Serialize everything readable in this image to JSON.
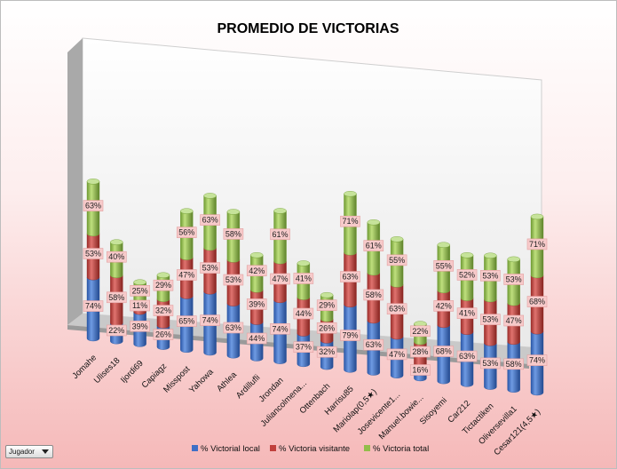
{
  "chart_data": {
    "type": "bar",
    "stacked": true,
    "three_d": true,
    "title": "PROMEDIO DE VICTORIAS",
    "categories": [
      "Jomahe",
      "Ulises18",
      "Ijordi69",
      "Capiagz",
      "Misspost",
      "Yahowa",
      "Athlea",
      "Ardillufli",
      "Jrondan",
      "Juliancolmena...",
      "Ottenbach",
      "Harrisu85",
      "Mariolap(0,5★)",
      "Josevicente1...",
      "Manuel.bowie...",
      "Sisoyemi",
      "Car212",
      "Tictactiken",
      "Oliversevilla1",
      "Cesar121(4,5★)"
    ],
    "series": [
      {
        "name": "% Victorial local",
        "values": [
          74,
          22,
          39,
          26,
          65,
          74,
          63,
          44,
          74,
          37,
          32,
          79,
          63,
          47,
          16,
          68,
          63,
          53,
          58,
          74
        ],
        "labels": [
          "74%",
          "22%",
          "39%",
          "26%",
          "65%",
          "74%",
          "63%",
          "44%",
          "74%",
          "37%",
          "32%",
          "79%",
          "63%",
          "47%",
          "16%",
          "68%",
          "63%",
          "53%",
          "58%",
          "74%"
        ]
      },
      {
        "name": "% Victoria visitante",
        "values": [
          53,
          58,
          11,
          32,
          47,
          53,
          53,
          39,
          47,
          44,
          26,
          63,
          58,
          63,
          28,
          42,
          41,
          53,
          47,
          68
        ],
        "labels": [
          "53%",
          "58%",
          "11%",
          "32%",
          "47%",
          "53%",
          "53%",
          "39%",
          "47%",
          "44%",
          "26%",
          "63%",
          "58%",
          "63%",
          "28%",
          "42%",
          "41%",
          "53%",
          "47%",
          "68%"
        ]
      },
      {
        "name": "% Victoria total",
        "values": [
          63,
          40,
          25,
          29,
          56,
          63,
          58,
          42,
          61,
          41,
          29,
          71,
          61,
          55,
          22,
          55,
          52,
          53,
          53,
          71
        ],
        "labels": [
          "63%",
          "40%",
          "25%",
          "29%",
          "56%",
          "63%",
          "58%",
          "42%",
          "61%",
          "41%",
          "29%",
          "71%",
          "61%",
          "55%",
          "22%",
          "55%",
          "52%",
          "53%",
          "53%",
          "71%"
        ]
      }
    ],
    "colors": [
      "#3f6fc6",
      "#c0403c",
      "#92bd4a"
    ],
    "legend_position": "bottom",
    "grid": false
  },
  "filter": {
    "label": "Jugador"
  }
}
